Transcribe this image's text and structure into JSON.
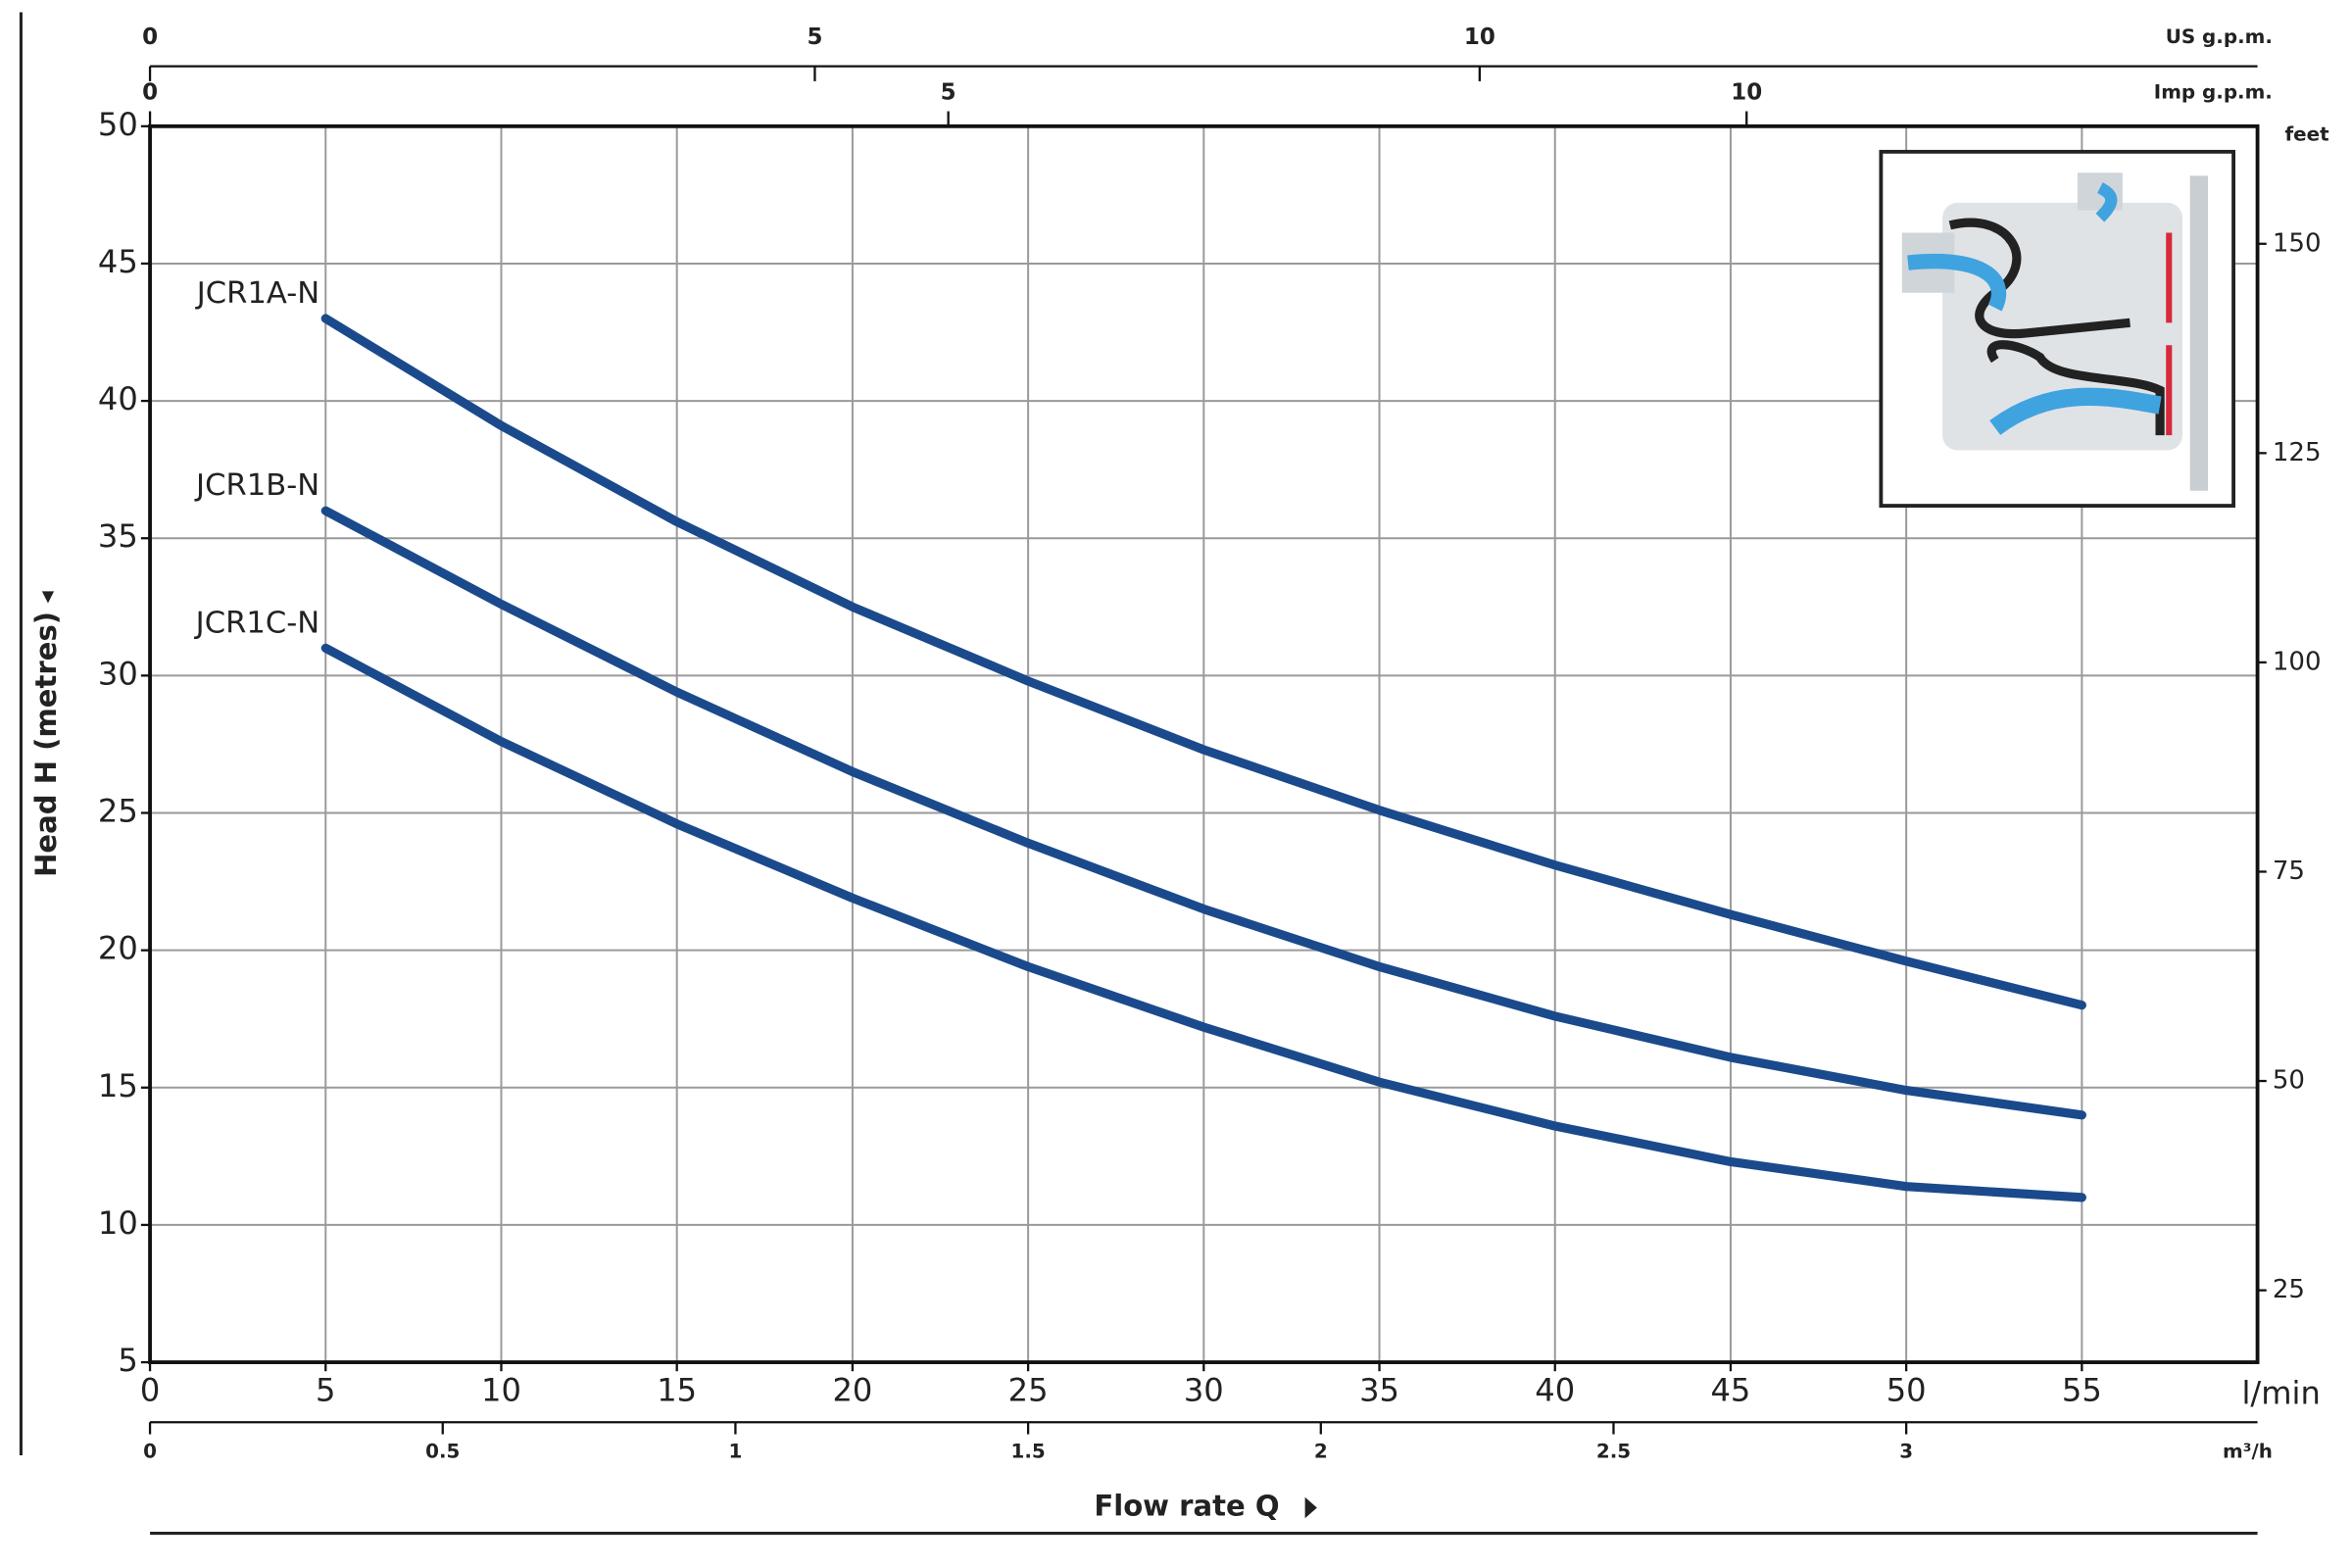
{
  "chart_data": {
    "type": "line",
    "x_unit": "l/min",
    "x_title": "Flow rate Q",
    "y_title": "Head H (metres)",
    "x": [
      5,
      10,
      15,
      20,
      25,
      30,
      35,
      40,
      45,
      50,
      55
    ],
    "xlim": [
      0,
      60
    ],
    "xticks": [
      0,
      5,
      10,
      15,
      20,
      25,
      30,
      35,
      40,
      45,
      50,
      55
    ],
    "ylim": [
      5,
      50
    ],
    "yticks": [
      5,
      10,
      15,
      20,
      25,
      30,
      35,
      40,
      45,
      50
    ],
    "y2_unit": "feet",
    "y2lim": [
      16.404,
      164.04
    ],
    "y2ticks": [
      25,
      50,
      75,
      100,
      125,
      150
    ],
    "top_axes": [
      {
        "unit": "US g.p.m.",
        "lim": [
          0,
          15.85
        ],
        "ticks": [
          0,
          5,
          10
        ]
      },
      {
        "unit": "Imp g.p.m.",
        "lim": [
          0,
          13.2
        ],
        "ticks": [
          0,
          5,
          10
        ]
      }
    ],
    "bottom_axis": {
      "unit": "m³/h",
      "lim": [
        0,
        3.6
      ],
      "ticks": [
        0,
        0.5,
        1,
        1.5,
        2,
        2.5,
        3
      ]
    },
    "grid": true,
    "series": [
      {
        "name": "JCR1A-N",
        "color": "#1b4a8c",
        "values": [
          43,
          39.1,
          35.6,
          32.5,
          29.8,
          27.3,
          25.1,
          23.1,
          21.3,
          19.6,
          18.0
        ]
      },
      {
        "name": "JCR1B-N",
        "color": "#1b4a8c",
        "values": [
          36,
          32.6,
          29.4,
          26.5,
          23.9,
          21.5,
          19.4,
          17.6,
          16.1,
          14.9,
          14.0
        ]
      },
      {
        "name": "JCR1C-N",
        "color": "#1b4a8c",
        "values": [
          31,
          27.6,
          24.6,
          21.9,
          19.4,
          17.2,
          15.2,
          13.6,
          12.3,
          11.4,
          11.0
        ]
      }
    ]
  }
}
